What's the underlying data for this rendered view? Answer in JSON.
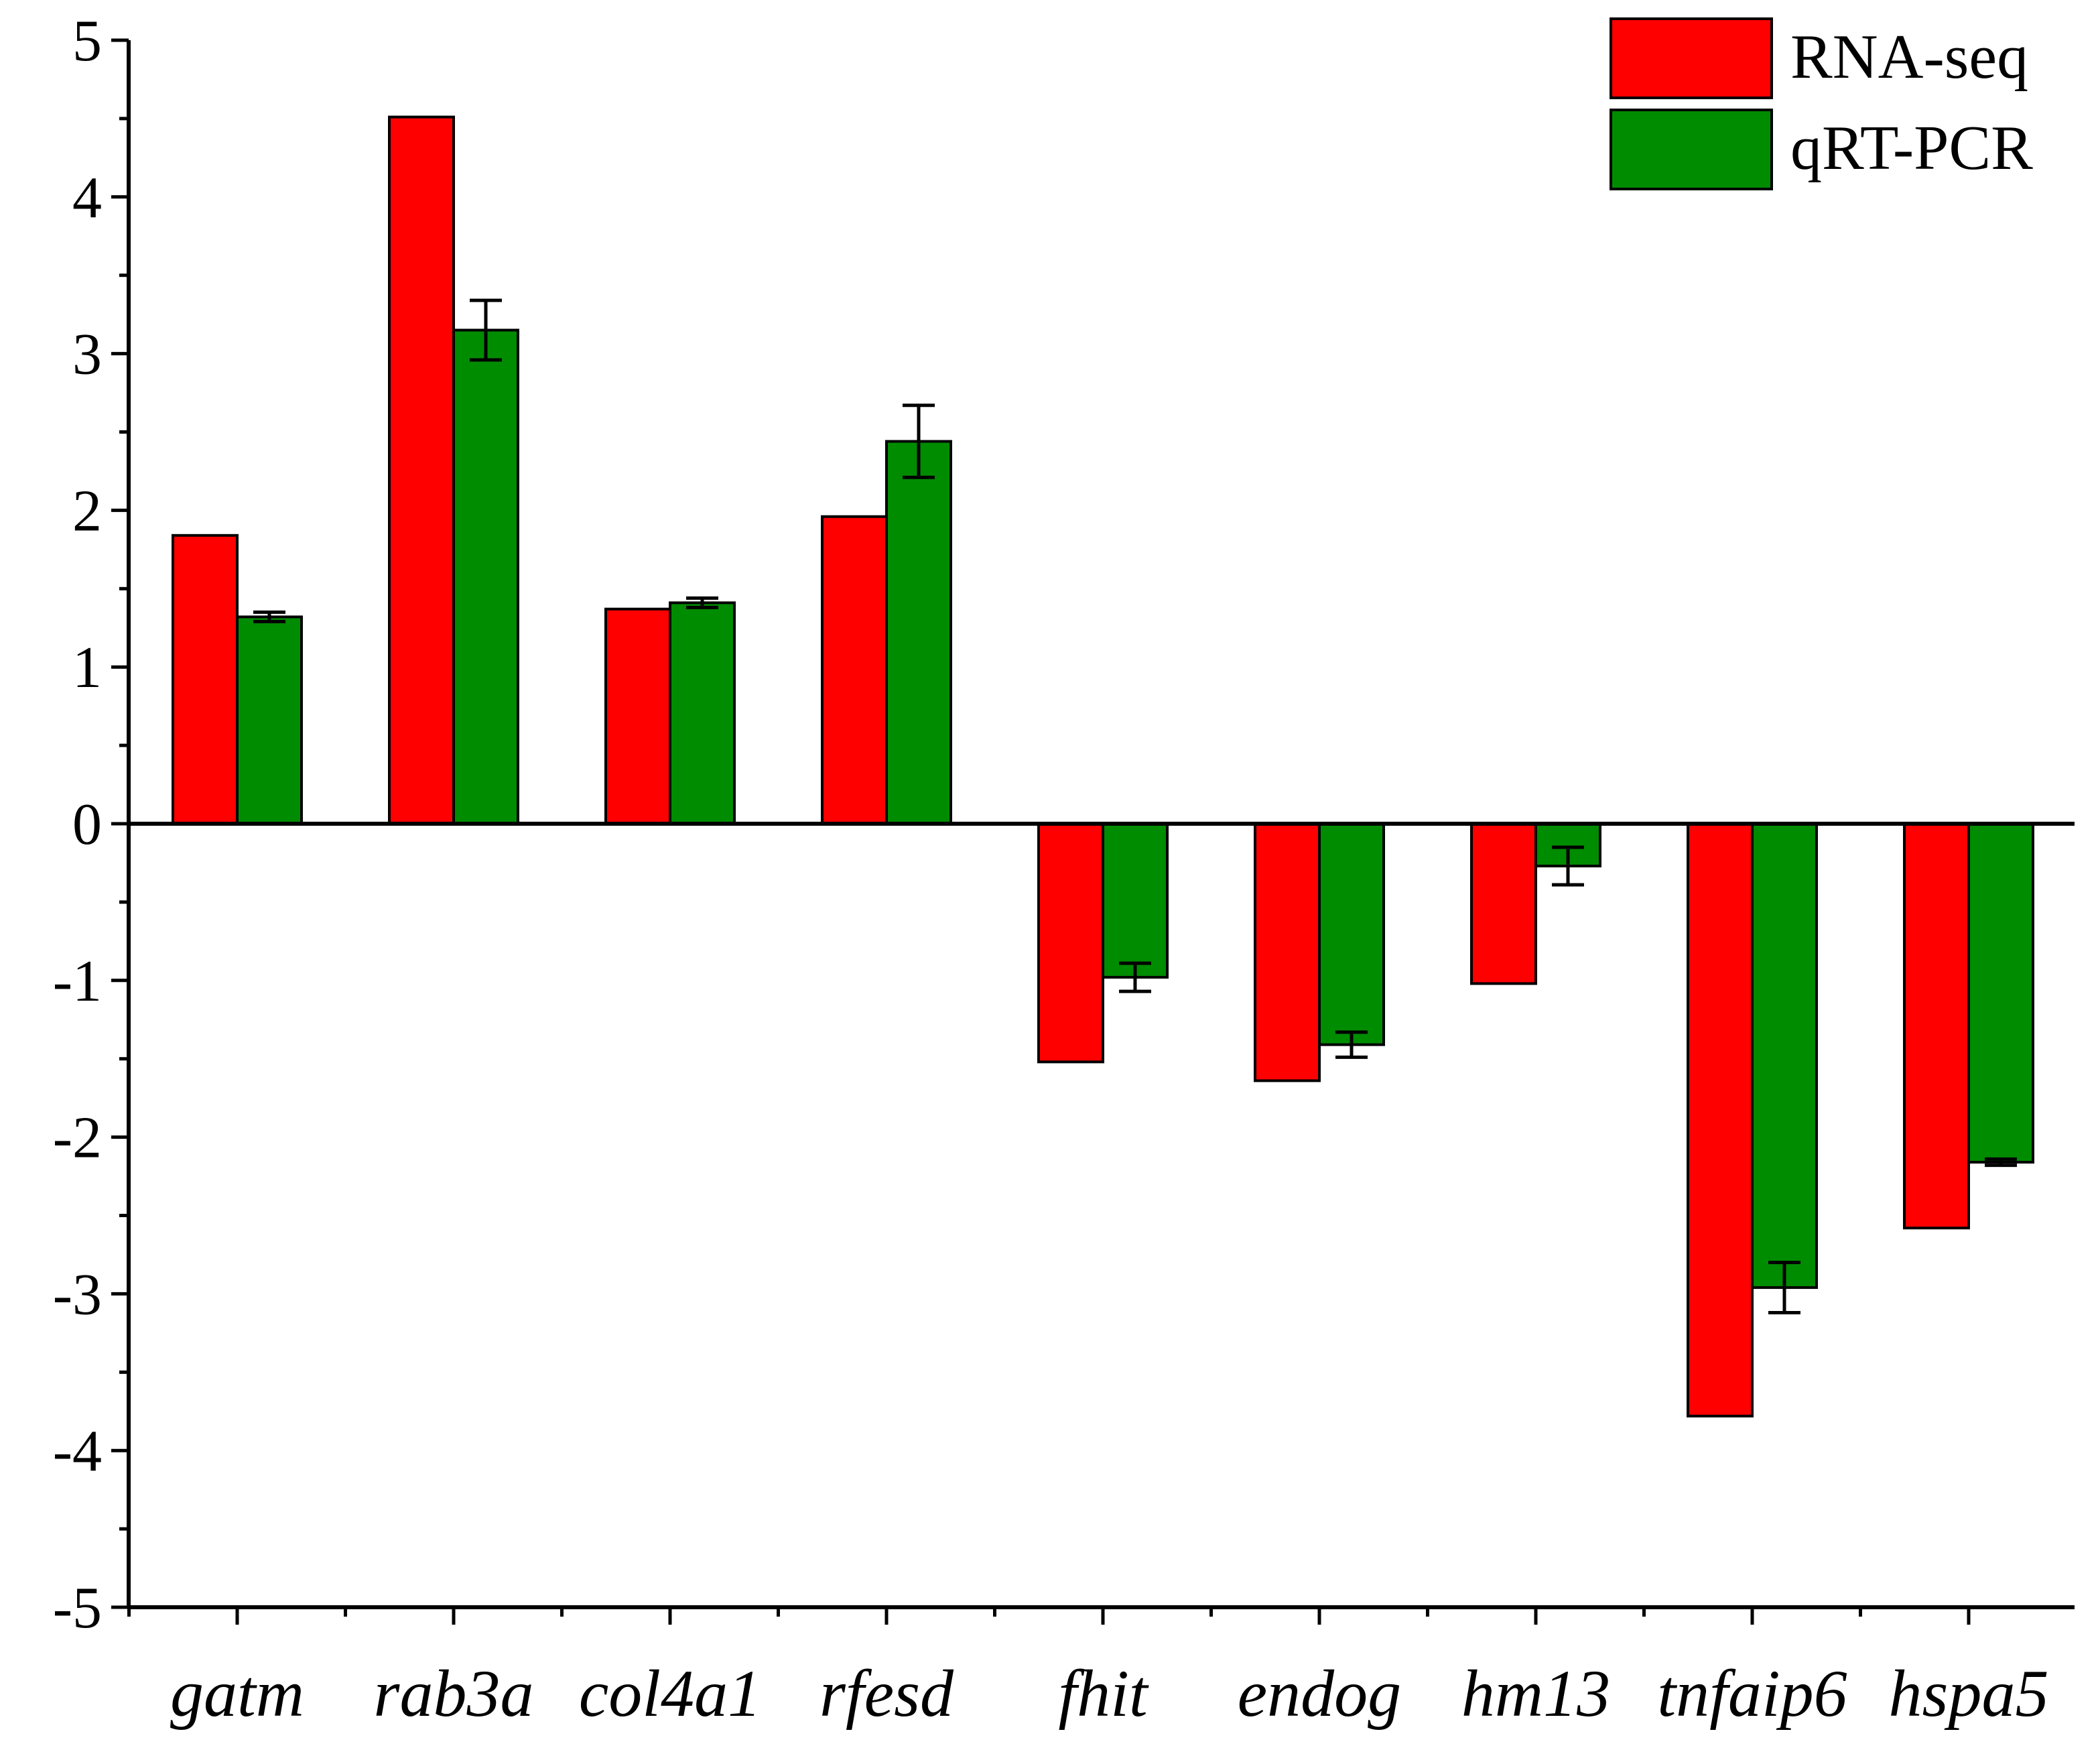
{
  "chart_data": {
    "type": "bar",
    "title": "",
    "xlabel": "",
    "ylabel": "",
    "ylim": [
      -5,
      5
    ],
    "yticks": [
      -5,
      -4,
      -3,
      -2,
      -1,
      0,
      1,
      2,
      3,
      4,
      5
    ],
    "categories": [
      "gatm",
      "rab3a",
      "col4a1",
      "rfesd",
      "fhit",
      "endog",
      "hm13",
      "tnfaip6",
      "hspa5"
    ],
    "series": [
      {
        "name": "RNA-seq",
        "color": "#ff0000",
        "values": [
          1.84,
          4.51,
          1.37,
          1.96,
          -1.52,
          -1.64,
          -1.02,
          -3.78,
          -2.58
        ],
        "errors": [
          null,
          null,
          null,
          null,
          null,
          null,
          null,
          null,
          null
        ]
      },
      {
        "name": "qRT-PCR",
        "color": "#008c00",
        "values": [
          1.32,
          3.15,
          1.41,
          2.44,
          -0.98,
          -1.41,
          -0.27,
          -2.96,
          -2.16
        ],
        "errors": [
          0.03,
          0.19,
          0.03,
          0.23,
          0.09,
          0.08,
          0.12,
          0.16,
          0.02
        ]
      }
    ],
    "legend": {
      "position": "top-right"
    },
    "grid": false
  }
}
